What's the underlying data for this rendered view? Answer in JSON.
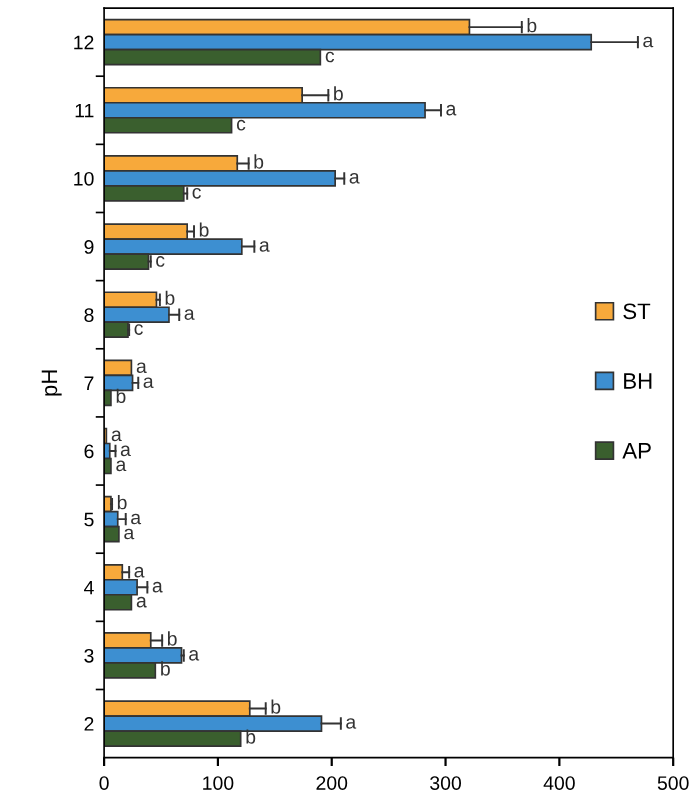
{
  "chart_data": {
    "type": "bar",
    "orientation": "horizontal",
    "ylabel": "pH",
    "categories": [
      "12",
      "11",
      "10",
      "9",
      "8",
      "7",
      "6",
      "5",
      "4",
      "3",
      "2"
    ],
    "series": [
      {
        "name": "ST",
        "color": "#f7a93b",
        "values": [
          321,
          174,
          117,
          73,
          46,
          24,
          2,
          6,
          16,
          41,
          128
        ],
        "errors": [
          [
            321,
            367
          ],
          [
            174,
            197
          ],
          [
            117,
            127
          ],
          [
            73,
            79
          ],
          [
            46,
            49
          ],
          null,
          null,
          [
            6,
            7
          ],
          [
            16,
            22
          ],
          [
            41,
            51
          ],
          [
            128,
            142
          ]
        ],
        "value_labels": [
          "b",
          "b",
          "b",
          "b",
          "b",
          "a",
          "a",
          "b",
          "a",
          "b",
          "b"
        ]
      },
      {
        "name": "BH",
        "color": "#3d8fd1",
        "values": [
          428,
          282,
          203,
          121,
          57,
          25,
          5,
          12,
          29,
          68,
          191
        ],
        "errors": [
          [
            428,
            469
          ],
          [
            282,
            296
          ],
          [
            203,
            211
          ],
          [
            121,
            132
          ],
          [
            57,
            66
          ],
          [
            25,
            30
          ],
          [
            5,
            10
          ],
          [
            12,
            19
          ],
          [
            29,
            38
          ],
          [
            68,
            70
          ],
          [
            191,
            208
          ]
        ],
        "value_labels": [
          "a",
          "a",
          "a",
          "a",
          "a",
          "a",
          "a",
          "a",
          "a",
          "a",
          "a"
        ]
      },
      {
        "name": "AP",
        "color": "#3a5f2e",
        "values": [
          190,
          112,
          70,
          39,
          21,
          6,
          6,
          13,
          24,
          45,
          120
        ],
        "errors": [
          null,
          null,
          [
            70,
            73
          ],
          [
            39,
            41
          ],
          [
            21,
            22
          ],
          null,
          null,
          null,
          null,
          null,
          null
        ],
        "value_labels": [
          "c",
          "c",
          "c",
          "c",
          "c",
          "b",
          "a",
          "a",
          "a",
          "b",
          "b"
        ]
      }
    ],
    "xlim": [
      0,
      500
    ],
    "xticks": [
      0,
      100,
      200,
      300,
      400,
      500
    ],
    "grid": false,
    "legend": "right"
  }
}
